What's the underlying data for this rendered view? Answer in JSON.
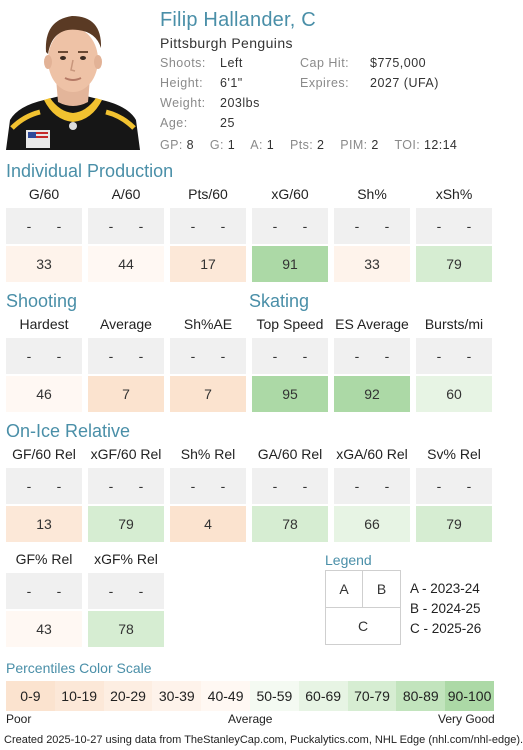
{
  "player": {
    "name": "Filip Hallander, C",
    "team": "Pittsburgh Penguins",
    "shoots_label": "Shoots:",
    "shoots": "Left",
    "height_label": "Height:",
    "height": "6'1\"",
    "weight_label": "Weight:",
    "weight": "203lbs",
    "age_label": "Age:",
    "age": "25",
    "caphit_label": "Cap Hit:",
    "caphit": "$775,000",
    "expires_label": "Expires:",
    "expires": "2027 (UFA)"
  },
  "statline": [
    {
      "k": "GP:",
      "v": "8"
    },
    {
      "k": "G:",
      "v": "1"
    },
    {
      "k": "A:",
      "v": "1"
    },
    {
      "k": "Pts:",
      "v": "2"
    },
    {
      "k": "PIM:",
      "v": "2"
    },
    {
      "k": "TOI:",
      "v": "12:14"
    }
  ],
  "sections": {
    "individual": "Individual Production",
    "shooting": "Shooting",
    "skating": "Skating",
    "onice": "On-Ice Relative"
  },
  "dash": "-",
  "individual": [
    {
      "label": "G/60",
      "value": "33",
      "pct": 33
    },
    {
      "label": "A/60",
      "value": "44",
      "pct": 44
    },
    {
      "label": "Pts/60",
      "value": "17",
      "pct": 17
    },
    {
      "label": "xG/60",
      "value": "91",
      "pct": 91
    },
    {
      "label": "Sh%",
      "value": "33",
      "pct": 33
    },
    {
      "label": "xSh%",
      "value": "79",
      "pct": 79
    }
  ],
  "shooting": [
    {
      "label": "Hardest",
      "value": "46",
      "pct": 46
    },
    {
      "label": "Average",
      "value": "7",
      "pct": 7
    },
    {
      "label": "Sh%AE",
      "value": "7",
      "pct": 7
    }
  ],
  "skating": [
    {
      "label": "Top Speed",
      "value": "95",
      "pct": 95
    },
    {
      "label": "ES Average",
      "value": "92",
      "pct": 92
    },
    {
      "label": "Bursts/mi",
      "value": "60",
      "pct": 60
    }
  ],
  "onice": [
    {
      "label": "GF/60 Rel",
      "value": "13",
      "pct": 13
    },
    {
      "label": "xGF/60 Rel",
      "value": "79",
      "pct": 79
    },
    {
      "label": "Sh% Rel",
      "value": "4",
      "pct": 4
    },
    {
      "label": "GA/60 Rel",
      "value": "78",
      "pct": 78
    },
    {
      "label": "xGA/60 Rel",
      "value": "66",
      "pct": 66
    },
    {
      "label": "Sv% Rel",
      "value": "79",
      "pct": 79
    }
  ],
  "onice2": [
    {
      "label": "GF% Rel",
      "value": "43",
      "pct": 43
    },
    {
      "label": "xGF% Rel",
      "value": "78",
      "pct": 78
    }
  ],
  "legend": {
    "title": "Legend",
    "a": "A",
    "b": "B",
    "c": "C",
    "a_text": "A - 2023-24",
    "b_text": "B - 2024-25",
    "c_text": "C - 2025-26"
  },
  "scale": {
    "title": "Percentiles Color Scale",
    "bins": [
      {
        "label": "0-9",
        "color": "#fbe3cf"
      },
      {
        "label": "10-19",
        "color": "#fce8d8"
      },
      {
        "label": "20-29",
        "color": "#fdeee2"
      },
      {
        "label": "30-39",
        "color": "#fef3eb"
      },
      {
        "label": "40-49",
        "color": "#fff8f3"
      },
      {
        "label": "50-59",
        "color": "#f4faf2"
      },
      {
        "label": "60-69",
        "color": "#e7f4e4"
      },
      {
        "label": "70-79",
        "color": "#d6edd2"
      },
      {
        "label": "80-89",
        "color": "#c2e4bd"
      },
      {
        "label": "90-100",
        "color": "#acd9a6"
      }
    ],
    "poor": "Poor",
    "average": "Average",
    "very_good": "Very Good"
  },
  "footer": "Created 2025-10-27 using data from TheStanleyCap.com, Puckalytics.com, NHL Edge (nhl.com/nhl-edge)."
}
